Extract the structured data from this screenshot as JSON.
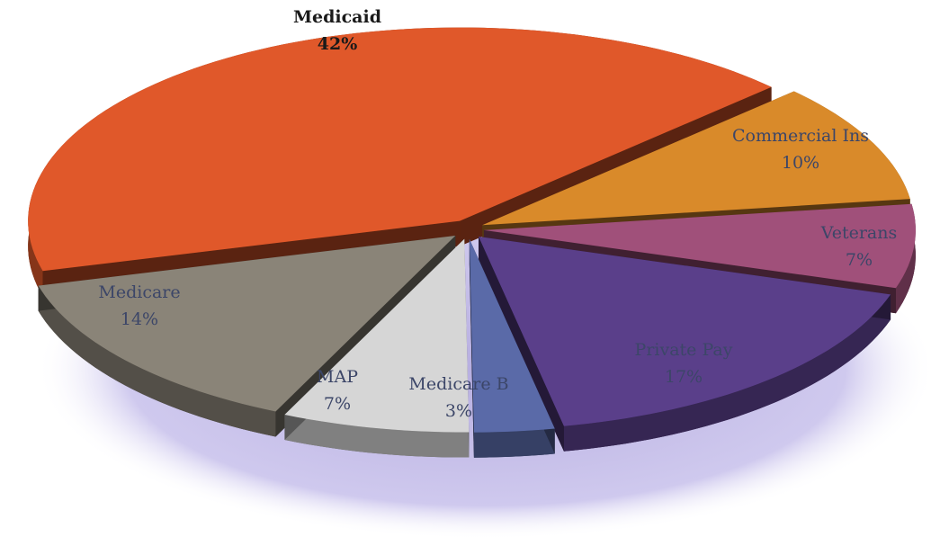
{
  "chart_data": {
    "type": "pie",
    "categories": [
      "Medicaid",
      "Commercial Ins",
      "Veterans",
      "Private Pay",
      "Medicare B",
      "MAP",
      "Medicare"
    ],
    "values": [
      42,
      10,
      7,
      17,
      3,
      7,
      14
    ],
    "value_labels": [
      "42%",
      "10%",
      "7%",
      "17%",
      "3%",
      "7%",
      "14%"
    ],
    "colors": [
      "#e0582a",
      "#d98a2a",
      "#a0507a",
      "#5a3f8a",
      "#5a6aa8",
      "#d6d6d6",
      "#8a8478"
    ]
  }
}
